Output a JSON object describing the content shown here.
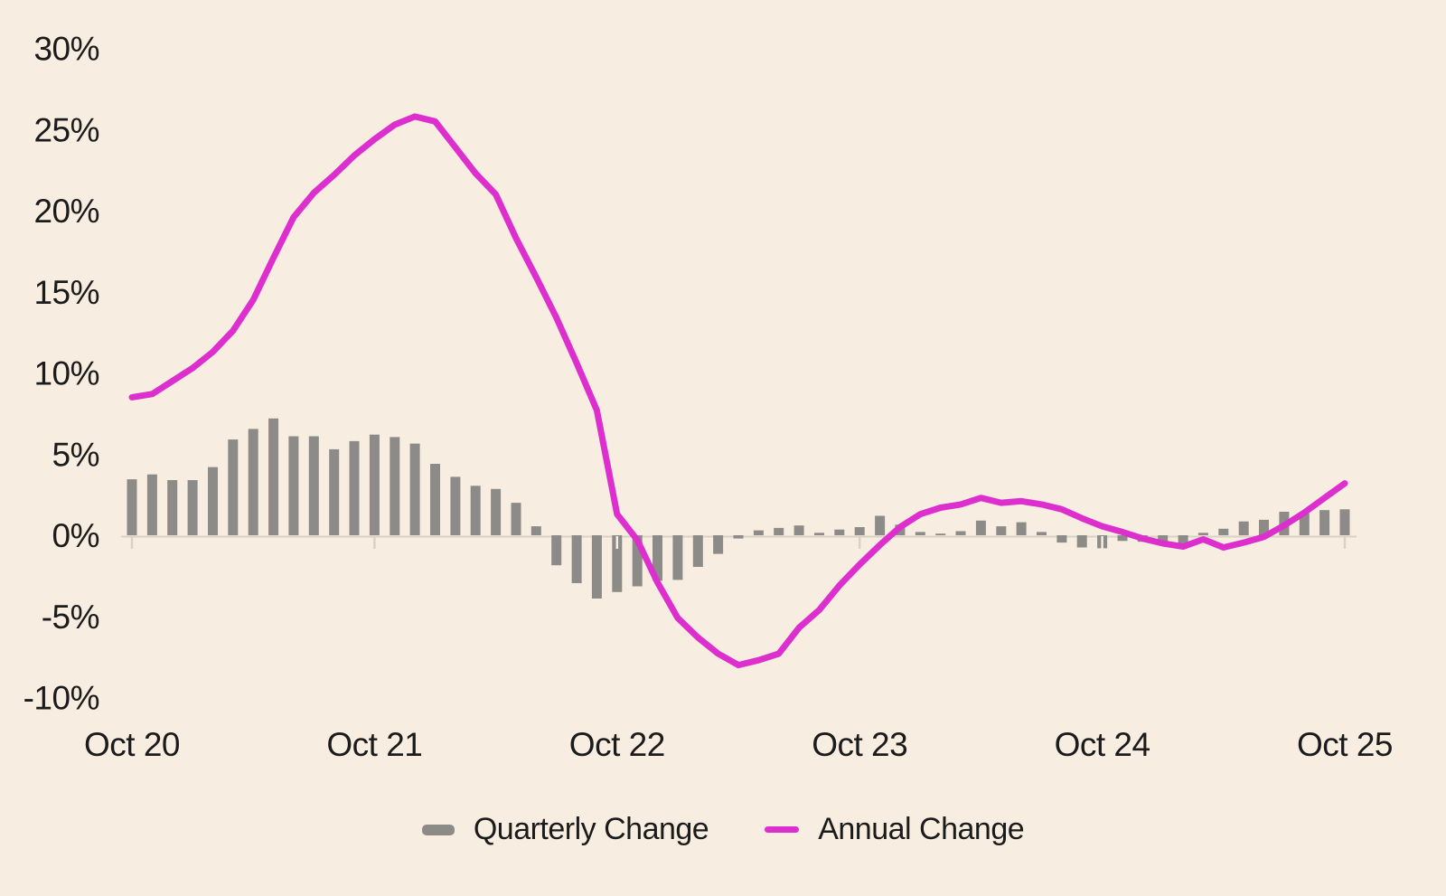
{
  "chart_data": {
    "type": "combo",
    "title": "",
    "x_unit": "monthly points from Oct 2020 to Oct 2025",
    "x_tick_positions": [
      0,
      12,
      24,
      36,
      48,
      60
    ],
    "x_tick_labels": [
      "Oct 20",
      "Oct 21",
      "Oct 22",
      "Oct 23",
      "Oct 24",
      "Oct 25"
    ],
    "y_axis": {
      "min": -10,
      "max": 30,
      "step": 5,
      "unit": "%"
    },
    "y_tick_labels": [
      "30%",
      "25%",
      "20%",
      "15%",
      "10%",
      "5%",
      "0%",
      "-5%",
      "-10%"
    ],
    "grid": "zero-baseline-only",
    "legend_position": "bottom",
    "colors": {
      "background": "#f7eee1",
      "text": "#1b1b1b",
      "axis_line": "#d9d2c5"
    },
    "series": [
      {
        "name": "Quarterly Change",
        "type": "bar",
        "color": "#8c8b87",
        "values": [
          3.45,
          3.75,
          3.4,
          3.4,
          4.2,
          5.9,
          6.55,
          7.2,
          6.1,
          6.1,
          5.3,
          5.8,
          6.2,
          6.05,
          5.65,
          4.4,
          3.6,
          3.05,
          2.85,
          2.0,
          0.55,
          -1.85,
          -2.95,
          -3.9,
          -3.5,
          -3.15,
          -2.8,
          -2.75,
          -1.95,
          -1.15,
          -0.2,
          0.3,
          0.45,
          0.6,
          0.15,
          0.35,
          0.5,
          1.2,
          0.65,
          0.2,
          0.1,
          0.25,
          0.9,
          0.55,
          0.8,
          0.2,
          -0.45,
          -0.75,
          -0.8,
          -0.35,
          -0.4,
          -0.5,
          -0.7,
          0.15,
          0.4,
          0.85,
          0.95,
          1.45,
          1.35,
          1.55,
          1.6
        ]
      },
      {
        "name": "Annual Change",
        "type": "line",
        "color": "#dd2fce",
        "values": [
          8.5,
          8.7,
          9.5,
          10.3,
          11.3,
          12.6,
          14.5,
          17.1,
          19.6,
          21.1,
          22.2,
          23.4,
          24.4,
          25.3,
          25.8,
          25.5,
          23.9,
          22.3,
          21.0,
          18.3,
          15.9,
          13.4,
          10.6,
          7.7,
          1.3,
          -0.3,
          -2.9,
          -5.1,
          -6.3,
          -7.3,
          -8.0,
          -7.7,
          -7.3,
          -5.7,
          -4.6,
          -3.1,
          -1.8,
          -0.6,
          0.5,
          1.3,
          1.7,
          1.9,
          2.3,
          2.0,
          2.1,
          1.9,
          1.6,
          1.05,
          0.55,
          0.2,
          -0.2,
          -0.5,
          -0.7,
          -0.25,
          -0.75,
          -0.45,
          -0.1,
          0.6,
          1.4,
          2.3,
          3.2
        ]
      }
    ]
  }
}
